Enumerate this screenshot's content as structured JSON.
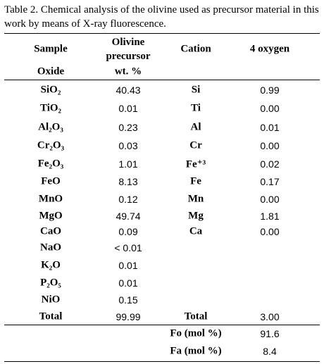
{
  "caption": "Table 2. Chemical analysis of the olivine used as precursor material in this work by means of X-ray fluorescence.",
  "header": {
    "sample": "Sample",
    "olivine": "Olivine precursor",
    "cation": "Cation",
    "oxygen": "4 oxygen",
    "oxide": "Oxide",
    "wt": "wt. %"
  },
  "rows": [
    {
      "oxide": "SiO₂",
      "wt": "40.43",
      "cation": "Si",
      "oxygen": "0.99"
    },
    {
      "oxide": "TiO₂",
      "wt": "0.01",
      "cation": "Ti",
      "oxygen": "0.00"
    },
    {
      "oxide": "Al₂O₃",
      "wt": "0.23",
      "cation": "Al",
      "oxygen": "0.01"
    },
    {
      "oxide": "Cr₂O₃",
      "wt": "0.03",
      "cation": "Cr",
      "oxygen": "0.00"
    },
    {
      "oxide": "Fe₂O₃",
      "wt": "1.01",
      "cation": "Fe⁺³",
      "oxygen": "0.02"
    },
    {
      "oxide": "FeO",
      "wt": "8.13",
      "cation": "Fe",
      "oxygen": "0.17"
    },
    {
      "oxide": "MnO",
      "wt": "0.12",
      "cation": "Mn",
      "oxygen": "0.00"
    },
    {
      "oxide": "MgO",
      "wt": "49.74",
      "cation": "Mg",
      "oxygen": "1.81"
    },
    {
      "oxide": "CaO",
      "wt": "0.09",
      "cation": "Ca",
      "oxygen": "0.00"
    },
    {
      "oxide": "NaO",
      "wt": "< 0.01"
    },
    {
      "oxide": "K₂O",
      "wt": "0.01"
    },
    {
      "oxide": "P₂O₅",
      "wt": "0.01"
    },
    {
      "oxide": "NiO",
      "wt": "0.15"
    },
    {
      "oxide": "Total",
      "wt": "99.99",
      "cation": "Total",
      "oxygen": "3.00"
    },
    {
      "cation": "Fo (mol %)",
      "oxygen": "91.6"
    },
    {
      "cation": "Fa (mol %)",
      "oxygen": "8.4"
    }
  ]
}
